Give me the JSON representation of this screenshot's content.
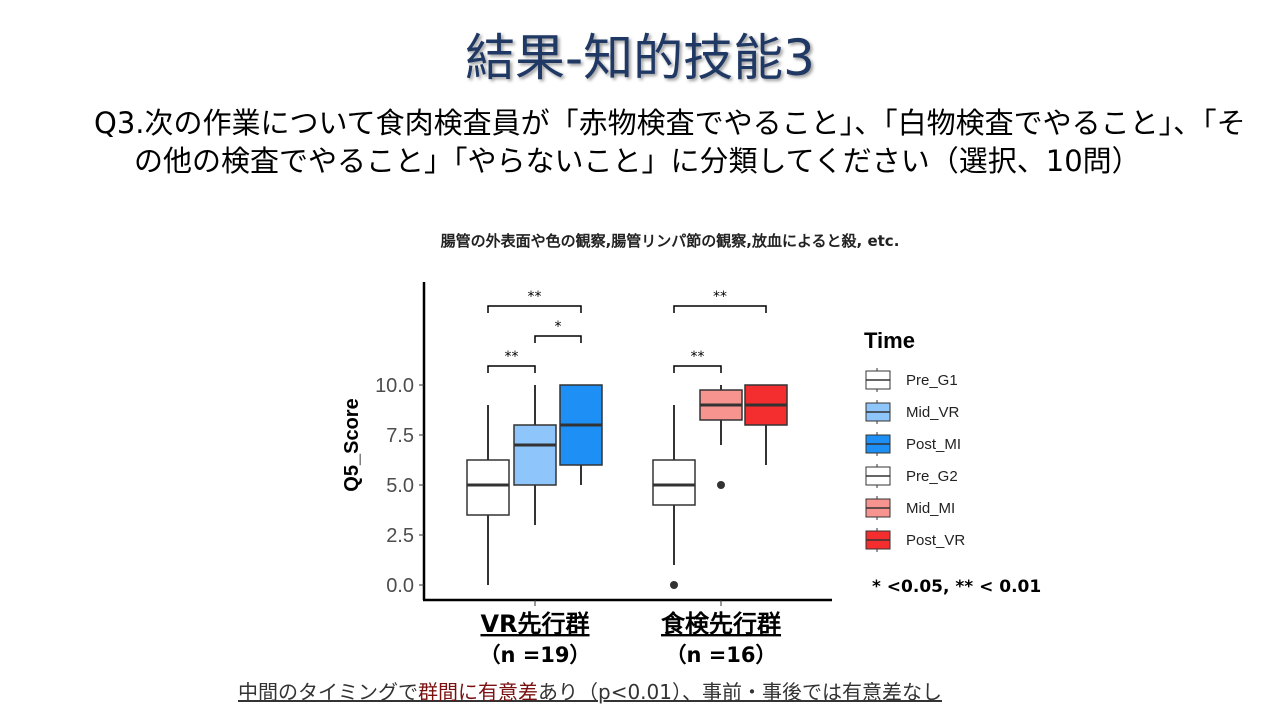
{
  "slide": {
    "title": "結果-知的技能3",
    "question": "Q3.次の作業について食肉検査員が「赤物検査でやること」、「白物検査でやること」、「その他の検査でやること」「やらないこと」に分類してください（選択、10問）",
    "subtitle": "腸管の外表面や色の観察,腸管リンパ節の観察,放血によると殺, etc.",
    "conclusion_a": "中間のタイミングで",
    "conclusion_b": "群間に有意差",
    "conclusion_c": "あり（p<0.01）、事前・事後では有意差なし"
  },
  "chart_data": {
    "type": "box",
    "ylabel": "Q5_Score",
    "ylim": [
      0,
      10
    ],
    "yticks": [
      "0.0",
      "2.5",
      "5.0",
      "7.5",
      "10.0"
    ],
    "groups": [
      {
        "label": "VR先行群",
        "n_label": "（n =19）"
      },
      {
        "label": "食検先行群",
        "n_label": "（n =16）"
      }
    ],
    "legend_title": "Time",
    "legend_placement": "right",
    "series": [
      {
        "name": "Pre_G1",
        "group": 0,
        "color": "#ffffff",
        "min": 0,
        "q1": 3.5,
        "median": 5,
        "q3": 6.25,
        "max": 9,
        "outliers": []
      },
      {
        "name": "Mid_VR",
        "group": 0,
        "color": "#8ec5fb",
        "min": 3,
        "q1": 5,
        "median": 7,
        "q3": 8,
        "max": 10,
        "outliers": []
      },
      {
        "name": "Post_MI",
        "group": 0,
        "color": "#1e8ff5",
        "min": 5,
        "q1": 6,
        "median": 8,
        "q3": 10,
        "max": 10,
        "outliers": []
      },
      {
        "name": "Pre_G2",
        "group": 1,
        "color": "#ffffff",
        "min": 1,
        "q1": 4,
        "median": 5,
        "q3": 6.25,
        "max": 9,
        "outliers": [
          0
        ]
      },
      {
        "name": "Mid_MI",
        "group": 1,
        "color": "#f7948f",
        "min": 7,
        "q1": 8.25,
        "median": 9,
        "q3": 9.75,
        "max": 10,
        "outliers": [
          5
        ]
      },
      {
        "name": "Post_VR",
        "group": 1,
        "color": "#f42e2e",
        "min": 6,
        "q1": 8,
        "median": 9,
        "q3": 10,
        "max": 10,
        "outliers": []
      }
    ],
    "significance": [
      {
        "from": 0,
        "to": 2,
        "label": "**",
        "level": 3
      },
      {
        "from": 1,
        "to": 2,
        "label": "*",
        "level": 2
      },
      {
        "from": 0,
        "to": 1,
        "label": "**",
        "level": 1
      },
      {
        "from": 3,
        "to": 5,
        "label": "**",
        "level": 3
      },
      {
        "from": 3,
        "to": 4,
        "label": "**",
        "level": 1
      }
    ],
    "note": "* <0.05,  ** < 0.01"
  }
}
